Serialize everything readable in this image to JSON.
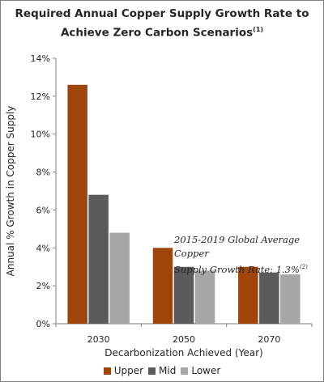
{
  "title": {
    "line1": "Required Annual Copper Supply Growth Rate to",
    "line2": "Achieve Zero Carbon Scenarios",
    "note_ref": "(1)"
  },
  "annotation": {
    "line1": "2015-2019 Global Average Copper",
    "line2": "Supply Growth Rate: 1.3%",
    "note_ref": "(2)"
  },
  "chart_data": {
    "type": "bar",
    "categories": [
      "2030",
      "2050",
      "2070"
    ],
    "series": [
      {
        "name": "Upper",
        "color": "#a0450a",
        "values": [
          12.6,
          4.0,
          3.0
        ]
      },
      {
        "name": "Mid",
        "color": "#5b5b5b",
        "values": [
          6.8,
          3.0,
          2.7
        ]
      },
      {
        "name": "Lower",
        "color": "#a6a6a6",
        "values": [
          4.8,
          2.8,
          2.6
        ]
      }
    ],
    "ylim": [
      0,
      14
    ],
    "yticks": [
      "0%",
      "2%",
      "4%",
      "6%",
      "8%",
      "10%",
      "12%",
      "14%"
    ],
    "xlabel": "Decarbonization Achieved (Year)",
    "ylabel": "Annual % Growth in Copper Supply",
    "legend_position": "bottom",
    "grid": false
  }
}
